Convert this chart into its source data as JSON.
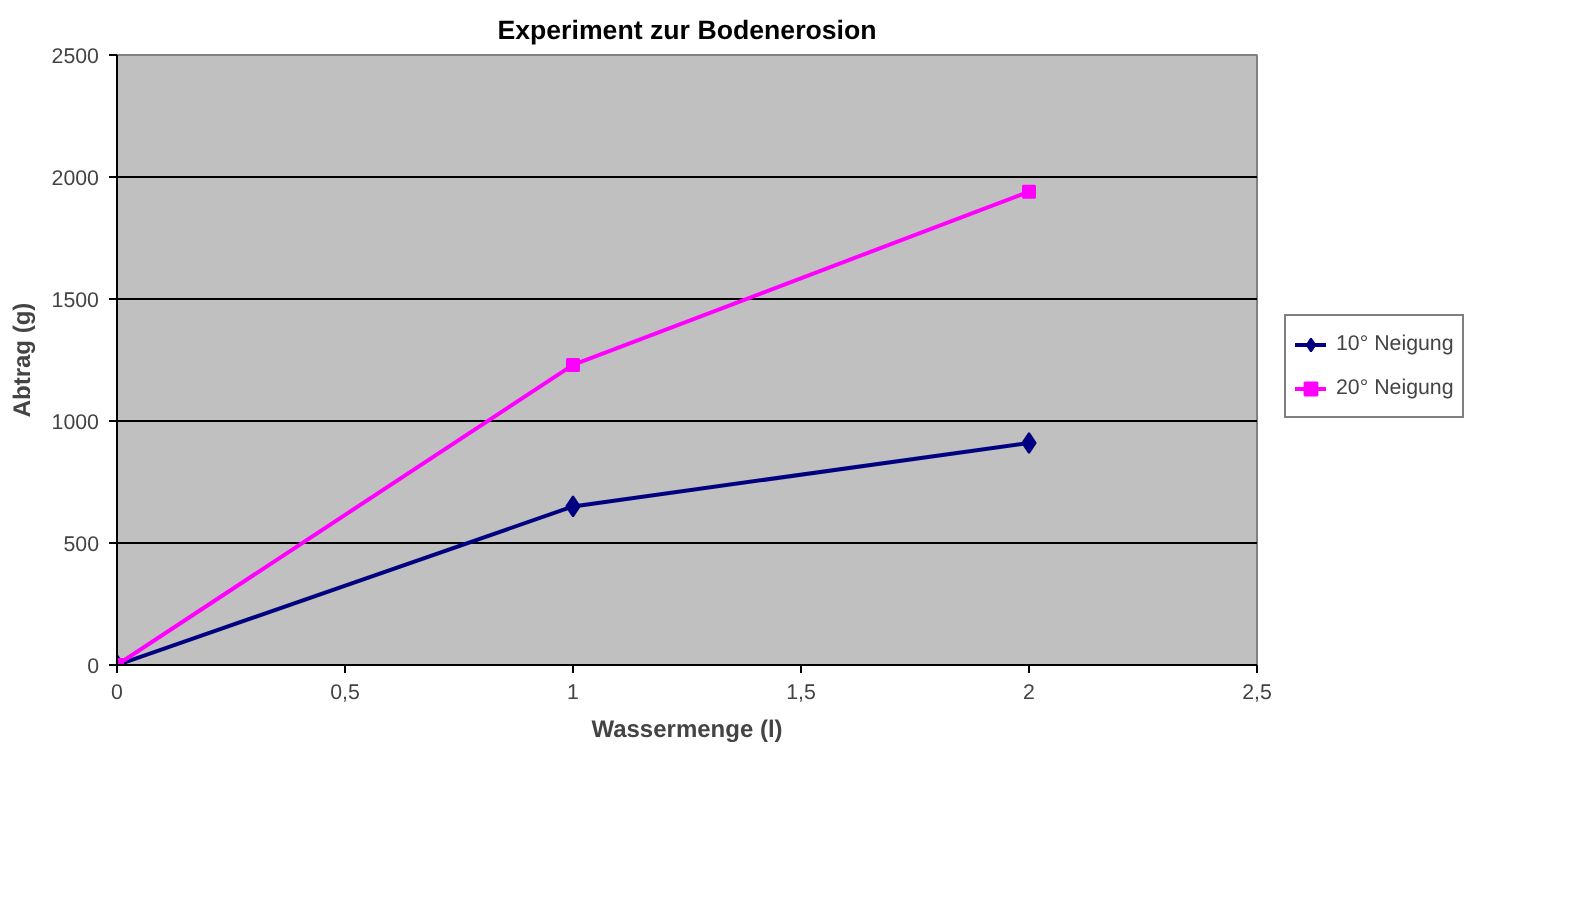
{
  "chart_data": {
    "type": "line",
    "title": "Experiment zur Bodenerosion",
    "xlabel": "Wassermenge (l)",
    "ylabel": "Abtrag (g)",
    "xlim": [
      0,
      2.5
    ],
    "xticks": [
      0,
      {
        "value": 0.5,
        "label": "0,5"
      },
      1,
      {
        "value": 1.5,
        "label": "1,5"
      },
      2,
      {
        "value": 2.5,
        "label": "2,5"
      }
    ],
    "ylim": [
      0,
      2500
    ],
    "yticks": [
      0,
      500,
      1000,
      1500,
      2000,
      2500
    ],
    "grid": "y",
    "legend": "right",
    "line_style": "solid",
    "x": [
      0,
      1,
      2
    ],
    "series": [
      {
        "name": "10° Neigung",
        "color": "#000080",
        "marker": "diamond",
        "values": [
          0,
          650,
          910
        ]
      },
      {
        "name": "20° Neigung",
        "color": "#ff00ff",
        "marker": "square",
        "values": [
          0,
          1230,
          1940
        ]
      }
    ]
  }
}
